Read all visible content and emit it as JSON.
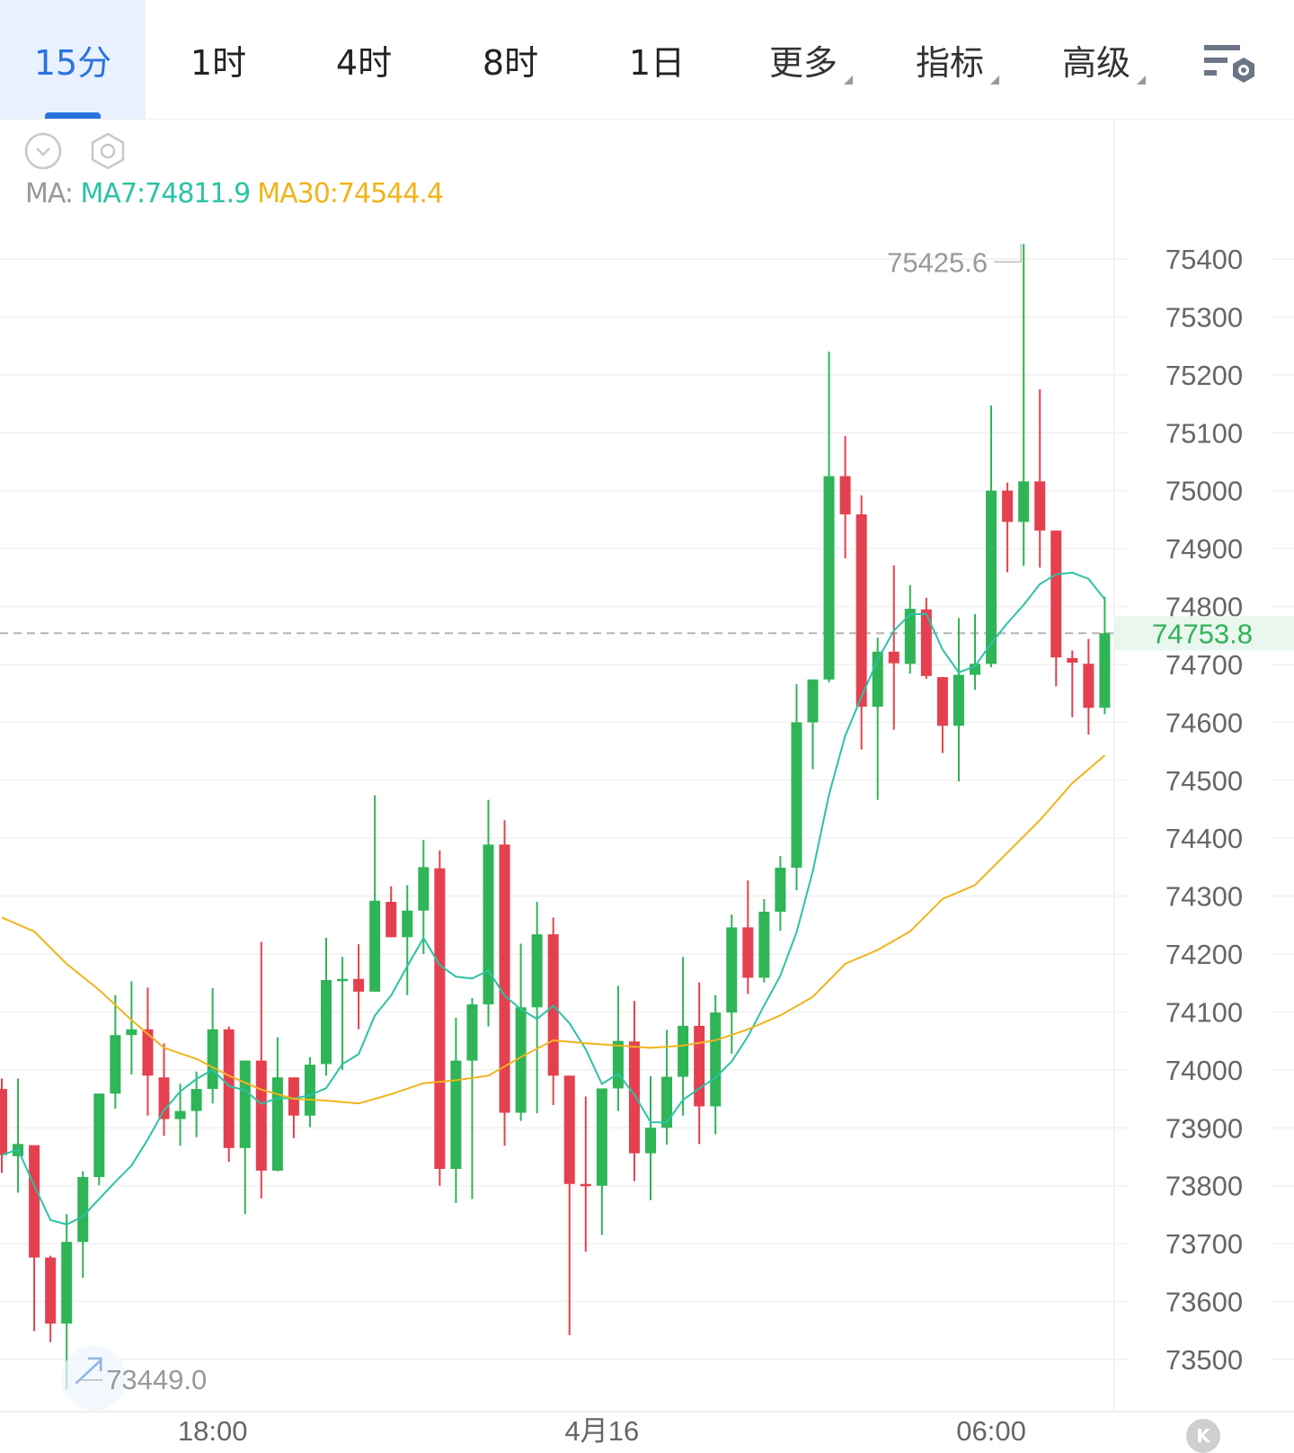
{
  "tabs": [
    {
      "label": "15分",
      "active": true
    },
    {
      "label": "1时"
    },
    {
      "label": "4时"
    },
    {
      "label": "8时"
    },
    {
      "label": "1日"
    },
    {
      "label": "更多",
      "dropdown": true
    },
    {
      "label": "指标",
      "dropdown": true
    },
    {
      "label": "高级",
      "dropdown": true
    }
  ],
  "ma_legend": {
    "prefix": "MA:",
    "ma7": "MA7:74811.9",
    "ma30": "MA30:74544.4"
  },
  "k_button": "K",
  "colors": {
    "up": "#2fb457",
    "down": "#e5404f",
    "ma7": "#2cc2a4",
    "ma30": "#f0b41c",
    "accent": "#2a74e0"
  },
  "chart_data": {
    "type": "candlestick",
    "interval": "15m",
    "ylim": [
      73450,
      75450
    ],
    "yticks": [
      "75400",
      "75300",
      "75200",
      "75100",
      "75000",
      "74900",
      "74800",
      "74700",
      "74600",
      "74500",
      "74400",
      "74300",
      "74200",
      "74100",
      "74000",
      "73900",
      "73800",
      "73700",
      "73600",
      "73500"
    ],
    "xticks": [
      {
        "index": 13,
        "label": "18:00"
      },
      {
        "index": 37,
        "label": "4月16"
      },
      {
        "index": 61,
        "label": "06:00"
      }
    ],
    "last_price": "74753.8",
    "max_label": "75425.6",
    "min_label": "73449.0",
    "candles": [
      [
        73967,
        73985,
        73822,
        73853
      ],
      [
        73851,
        73985,
        73788,
        73872
      ],
      [
        73870,
        73870,
        73549,
        73676
      ],
      [
        73676,
        73679,
        73530,
        73562
      ],
      [
        73562,
        73751,
        73449,
        73703
      ],
      [
        73703,
        73825,
        73641,
        73815
      ],
      [
        73815,
        73959,
        73801,
        73959
      ],
      [
        73959,
        74129,
        73933,
        74060
      ],
      [
        74060,
        74153,
        73992,
        74070
      ],
      [
        74070,
        74142,
        73921,
        73990
      ],
      [
        73987,
        74046,
        73886,
        73915
      ],
      [
        73915,
        73976,
        73869,
        73929
      ],
      [
        73929,
        73997,
        73884,
        73967
      ],
      [
        73967,
        74141,
        73942,
        74070
      ],
      [
        74070,
        74075,
        73841,
        73865
      ],
      [
        73865,
        74016,
        73751,
        74016
      ],
      [
        74016,
        74221,
        73778,
        73826
      ],
      [
        73826,
        74056,
        73825,
        73987
      ],
      [
        73987,
        73987,
        73882,
        73921
      ],
      [
        73921,
        74022,
        73901,
        74009
      ],
      [
        74010,
        74228,
        73990,
        74155
      ],
      [
        74155,
        74195,
        74000,
        74157
      ],
      [
        74157,
        74217,
        74070,
        74135
      ],
      [
        74135,
        74474,
        74135,
        74292
      ],
      [
        74290,
        74317,
        74229,
        74229
      ],
      [
        74229,
        74319,
        74129,
        74275
      ],
      [
        74275,
        74397,
        74200,
        74350
      ],
      [
        74348,
        74379,
        73800,
        73829
      ],
      [
        73829,
        74090,
        73770,
        74016
      ],
      [
        74016,
        74124,
        73777,
        74113
      ],
      [
        74113,
        74466,
        74075,
        74389
      ],
      [
        74389,
        74431,
        73869,
        73926
      ],
      [
        73926,
        74218,
        73912,
        74108
      ],
      [
        74108,
        74290,
        73925,
        74234
      ],
      [
        74234,
        74263,
        73939,
        73990
      ],
      [
        73990,
        73990,
        73542,
        73803
      ],
      [
        73803,
        73954,
        73686,
        73800
      ],
      [
        73800,
        73968,
        73715,
        73968
      ],
      [
        73968,
        74145,
        73929,
        74050
      ],
      [
        74049,
        74119,
        73808,
        73856
      ],
      [
        73856,
        73989,
        73775,
        73900
      ],
      [
        73900,
        74069,
        73871,
        73988
      ],
      [
        73988,
        74195,
        73921,
        74076
      ],
      [
        74076,
        74151,
        73872,
        73937
      ],
      [
        73937,
        74129,
        73889,
        74099
      ],
      [
        74099,
        74268,
        74028,
        74246
      ],
      [
        74246,
        74327,
        74131,
        74159
      ],
      [
        74159,
        74295,
        74151,
        74273
      ],
      [
        74273,
        74369,
        74240,
        74349
      ],
      [
        74349,
        74666,
        74310,
        74600
      ],
      [
        74600,
        74674,
        74519,
        74674
      ],
      [
        74674,
        75240,
        74669,
        75025
      ],
      [
        75025,
        75094,
        74883,
        74959
      ],
      [
        74959,
        74992,
        74553,
        74627
      ],
      [
        74627,
        74746,
        74466,
        74722
      ],
      [
        74722,
        74871,
        74587,
        74702
      ],
      [
        74701,
        74837,
        74684,
        74796
      ],
      [
        74795,
        74815,
        74675,
        74680
      ],
      [
        74678,
        74678,
        74547,
        74594
      ],
      [
        74594,
        74780,
        74498,
        74682
      ],
      [
        74682,
        74787,
        74656,
        74701
      ],
      [
        74701,
        75147,
        74695,
        75000
      ],
      [
        75000,
        75014,
        74859,
        74946
      ],
      [
        74946,
        75426,
        74870,
        75016
      ],
      [
        75016,
        75175,
        74867,
        74931
      ],
      [
        74931,
        74931,
        74662,
        74712
      ],
      [
        74711,
        74724,
        74609,
        74703
      ],
      [
        74701,
        74744,
        74579,
        74625
      ],
      [
        74625,
        74817,
        74614,
        74753.8
      ]
    ],
    "candle_fields": [
      "open",
      "high",
      "low",
      "close"
    ],
    "ma30_every_2": [
      74263,
      74239,
      74183,
      74138,
      74086,
      74038,
      74019,
      73990,
      73966,
      73950,
      73947,
      73942,
      73958,
      73977,
      73982,
      73990,
      74022,
      74051,
      74046,
      74042,
      74038,
      74042,
      74051,
      74070,
      74094,
      74126,
      74183,
      74207,
      74239,
      74295,
      74319,
      74375,
      74431,
      74495,
      74543
    ]
  }
}
